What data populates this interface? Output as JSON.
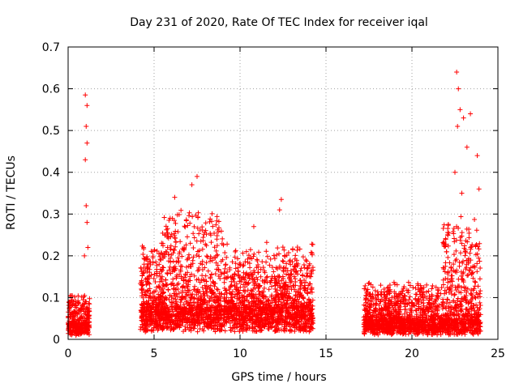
{
  "chart_data": {
    "type": "scatter",
    "title": "Day 231 of 2020, Rate Of TEC Index for receiver iqal",
    "xlabel": "GPS time / hours",
    "ylabel": "ROTI / TECUs",
    "xlim": [
      0,
      25
    ],
    "ylim": [
      0,
      0.7
    ],
    "x_ticks": [
      "0",
      "5",
      "10",
      "15",
      "20",
      "25"
    ],
    "x_tick_values": [
      0,
      5,
      10,
      15,
      20,
      25
    ],
    "y_ticks": [
      "0",
      "0.1",
      "0.2",
      "0.3",
      "0.4",
      "0.5",
      "0.6",
      "0.7"
    ],
    "y_tick_values": [
      0,
      0.1,
      0.2,
      0.3,
      0.4,
      0.5,
      0.6,
      0.7
    ],
    "grid": true,
    "marker": "+",
    "marker_color": "#ff0000",
    "segments": [
      {
        "start": 0.0,
        "end": 1.25,
        "base": 0.03,
        "spread": 0.05
      },
      {
        "start": 4.2,
        "end": 14.25,
        "base": 0.06,
        "spread": 0.1
      },
      {
        "start": 17.2,
        "end": 24.0,
        "base": 0.035,
        "spread": 0.06
      }
    ],
    "notable_points": [
      {
        "x": 1.0,
        "y": 0.585
      },
      {
        "x": 1.1,
        "y": 0.56
      },
      {
        "x": 1.05,
        "y": 0.51
      },
      {
        "x": 1.1,
        "y": 0.47
      },
      {
        "x": 1.0,
        "y": 0.43
      },
      {
        "x": 1.05,
        "y": 0.32
      },
      {
        "x": 1.1,
        "y": 0.28
      },
      {
        "x": 1.15,
        "y": 0.22
      },
      {
        "x": 0.95,
        "y": 0.2
      },
      {
        "x": 6.2,
        "y": 0.34
      },
      {
        "x": 7.2,
        "y": 0.37
      },
      {
        "x": 7.5,
        "y": 0.39
      },
      {
        "x": 12.4,
        "y": 0.335
      },
      {
        "x": 12.3,
        "y": 0.31
      },
      {
        "x": 10.8,
        "y": 0.27
      },
      {
        "x": 22.6,
        "y": 0.64
      },
      {
        "x": 22.7,
        "y": 0.6
      },
      {
        "x": 22.8,
        "y": 0.55
      },
      {
        "x": 22.65,
        "y": 0.51
      },
      {
        "x": 23.4,
        "y": 0.54
      },
      {
        "x": 23.0,
        "y": 0.53
      },
      {
        "x": 23.2,
        "y": 0.46
      },
      {
        "x": 23.8,
        "y": 0.44
      },
      {
        "x": 22.5,
        "y": 0.4
      },
      {
        "x": 23.9,
        "y": 0.36
      },
      {
        "x": 22.9,
        "y": 0.35
      }
    ],
    "x_min": 0,
    "x_max": 24
  }
}
